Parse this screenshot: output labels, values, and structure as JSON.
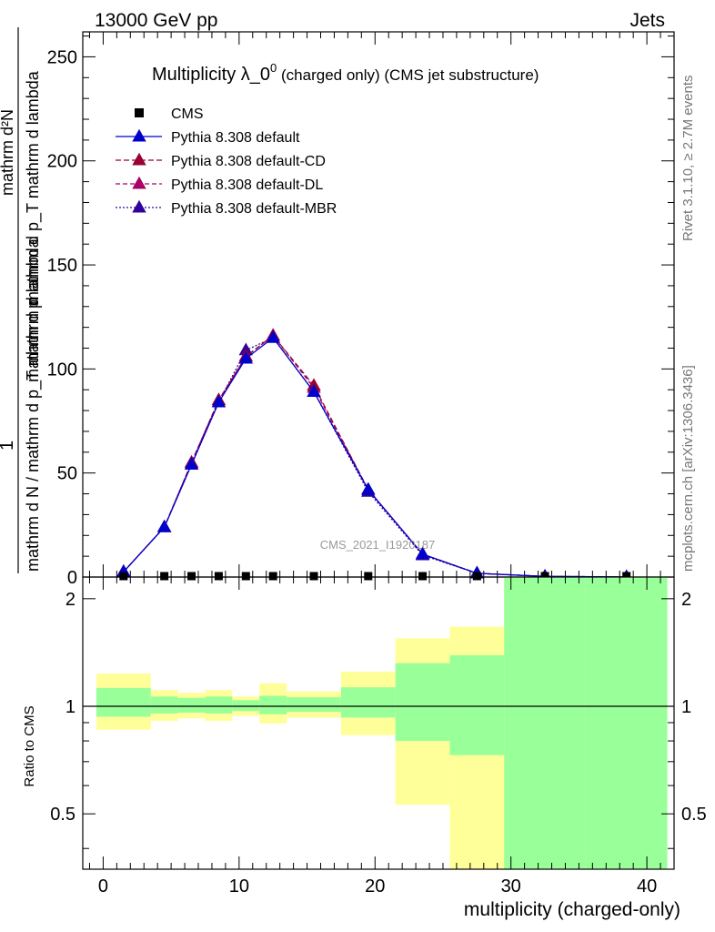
{
  "header": {
    "left": "13000 GeV pp",
    "right": "Jets"
  },
  "side_text": {
    "rivet": "Rivet 3.1.10, ≥ 2.7M events",
    "mcplots": "mcplots.cern.ch [arXiv:1306.3436]"
  },
  "watermark": "CMS_2021_I1920187",
  "colors": {
    "cms": "#000000",
    "default": "#0000cc",
    "cd": "#990033",
    "dl": "#aa0066",
    "mbr": "#330099",
    "band_inner": "#99ff99",
    "band_outer": "#ffff99"
  },
  "chart_data": [
    {
      "type": "line",
      "title_main": "Multiplicity λ_0",
      "title_sup": "0",
      "title_rest": " (charged only) (CMS jet substructure)",
      "ylabel": "1 / (mathrm d N / mathrm d p_T mathrm d lambda) · mathrm d²N / (mathrm d p_T mathrm d lambda)",
      "ylabel_top": "mathrm d²N",
      "ylabel_mid": "mathrm d p_T mathrm d lambda",
      "ylabel_bot": "mathrm d N / mathrm d p_T mathrm d lambda",
      "ylabel_frac_bot2": "mathrm d p",
      "ylabel_one": "1",
      "xlim": [
        -1.5,
        42
      ],
      "ylim": [
        0,
        262
      ],
      "yticks": [
        0,
        50,
        100,
        150,
        200,
        250
      ],
      "legend": [
        "CMS",
        "Pythia 8.308 default",
        "Pythia 8.308 default-CD",
        "Pythia 8.308 default-DL",
        "Pythia 8.308 default-MBR"
      ],
      "cms": {
        "name": "CMS",
        "x": [
          1.5,
          4.5,
          6.5,
          8.5,
          10.5,
          12.5,
          15.5,
          19.5,
          23.5,
          27.5,
          32.5,
          38.5
        ],
        "y": [
          0,
          0,
          0,
          0,
          0,
          0,
          0,
          0,
          0,
          0,
          0,
          0
        ]
      },
      "series": [
        {
          "name": "Pythia 8.308 default",
          "key": "default",
          "dash": "",
          "x": [
            1.5,
            4.5,
            6.5,
            8.5,
            10.5,
            12.5,
            15.5,
            19.5,
            23.5,
            27.5,
            32.5,
            38.5
          ],
          "y": [
            2.5,
            24,
            54,
            84,
            105,
            115,
            89,
            42,
            11,
            1.8,
            0.3,
            0.05
          ]
        },
        {
          "name": "Pythia 8.308 default-CD",
          "key": "cd",
          "dash": "6,3",
          "x": [
            1.5,
            4.5,
            6.5,
            8.5,
            10.5,
            12.5,
            15.5,
            19.5,
            23.5,
            27.5,
            32.5,
            38.5
          ],
          "y": [
            2.5,
            24,
            55,
            85,
            106,
            116,
            92,
            42,
            11,
            1.8,
            0.3,
            0.05
          ]
        },
        {
          "name": "Pythia 8.308 default-DL",
          "key": "dl",
          "dash": "5,3",
          "x": [
            1.5,
            4.5,
            6.5,
            8.5,
            10.5,
            12.5,
            15.5,
            19.5,
            23.5,
            27.5,
            32.5,
            38.5
          ],
          "y": [
            2.5,
            24,
            55,
            85,
            106,
            116,
            91,
            42,
            11,
            1.8,
            0.3,
            0.05
          ]
        },
        {
          "name": "Pythia 8.308 default-MBR",
          "key": "mbr",
          "dash": "2,2",
          "x": [
            1.5,
            4.5,
            6.5,
            8.5,
            10.5,
            12.5,
            15.5,
            19.5,
            23.5,
            27.5,
            32.5,
            38.5
          ],
          "y": [
            2.5,
            24,
            54,
            84,
            109,
            115,
            89,
            41,
            10.5,
            1.8,
            0.3,
            0.05
          ]
        }
      ]
    },
    {
      "type": "area",
      "ylabel": "Ratio to CMS",
      "xlabel": "multiplicity (charged-only)",
      "xlim": [
        -1.5,
        42
      ],
      "ylim": [
        0.35,
        2.3
      ],
      "xticks": [
        0,
        10,
        20,
        30,
        40
      ],
      "yticks": [
        0.5,
        1,
        2
      ],
      "bins": [
        {
          "lo": -0.5,
          "hi": 3.5,
          "in_lo": 0.935,
          "in_hi": 1.125,
          "out_lo": 0.86,
          "out_hi": 1.235
        },
        {
          "lo": 3.5,
          "hi": 5.5,
          "in_lo": 0.955,
          "in_hi": 1.065,
          "out_lo": 0.91,
          "out_hi": 1.11
        },
        {
          "lo": 5.5,
          "hi": 7.5,
          "in_lo": 0.96,
          "in_hi": 1.055,
          "out_lo": 0.925,
          "out_hi": 1.09
        },
        {
          "lo": 7.5,
          "hi": 9.5,
          "in_lo": 0.955,
          "in_hi": 1.065,
          "out_lo": 0.91,
          "out_hi": 1.11
        },
        {
          "lo": 9.5,
          "hi": 11.5,
          "in_lo": 0.97,
          "in_hi": 1.04,
          "out_lo": 0.94,
          "out_hi": 1.065
        },
        {
          "lo": 11.5,
          "hi": 13.5,
          "in_lo": 0.95,
          "in_hi": 1.07,
          "out_lo": 0.895,
          "out_hi": 1.16
        },
        {
          "lo": 13.5,
          "hi": 17.5,
          "in_lo": 0.965,
          "in_hi": 1.06,
          "out_lo": 0.93,
          "out_hi": 1.1
        },
        {
          "lo": 17.5,
          "hi": 21.5,
          "in_lo": 0.93,
          "in_hi": 1.13,
          "out_lo": 0.83,
          "out_hi": 1.25
        },
        {
          "lo": 21.5,
          "hi": 25.5,
          "in_lo": 0.8,
          "in_hi": 1.32,
          "out_lo": 0.53,
          "out_hi": 1.55
        },
        {
          "lo": 25.5,
          "hi": 29.5,
          "in_lo": 0.73,
          "in_hi": 1.39,
          "out_lo": 0.35,
          "out_hi": 1.67
        },
        {
          "lo": 29.5,
          "hi": 35.5,
          "in_lo": 0.35,
          "in_hi": 2.3,
          "out_lo": 0.35,
          "out_hi": 2.3,
          "out_cap": 2.23
        },
        {
          "lo": 35.5,
          "hi": 41.5,
          "in_lo": 0.35,
          "in_hi": 2.3,
          "out_lo": 0.35,
          "out_hi": 2.3
        }
      ]
    }
  ]
}
